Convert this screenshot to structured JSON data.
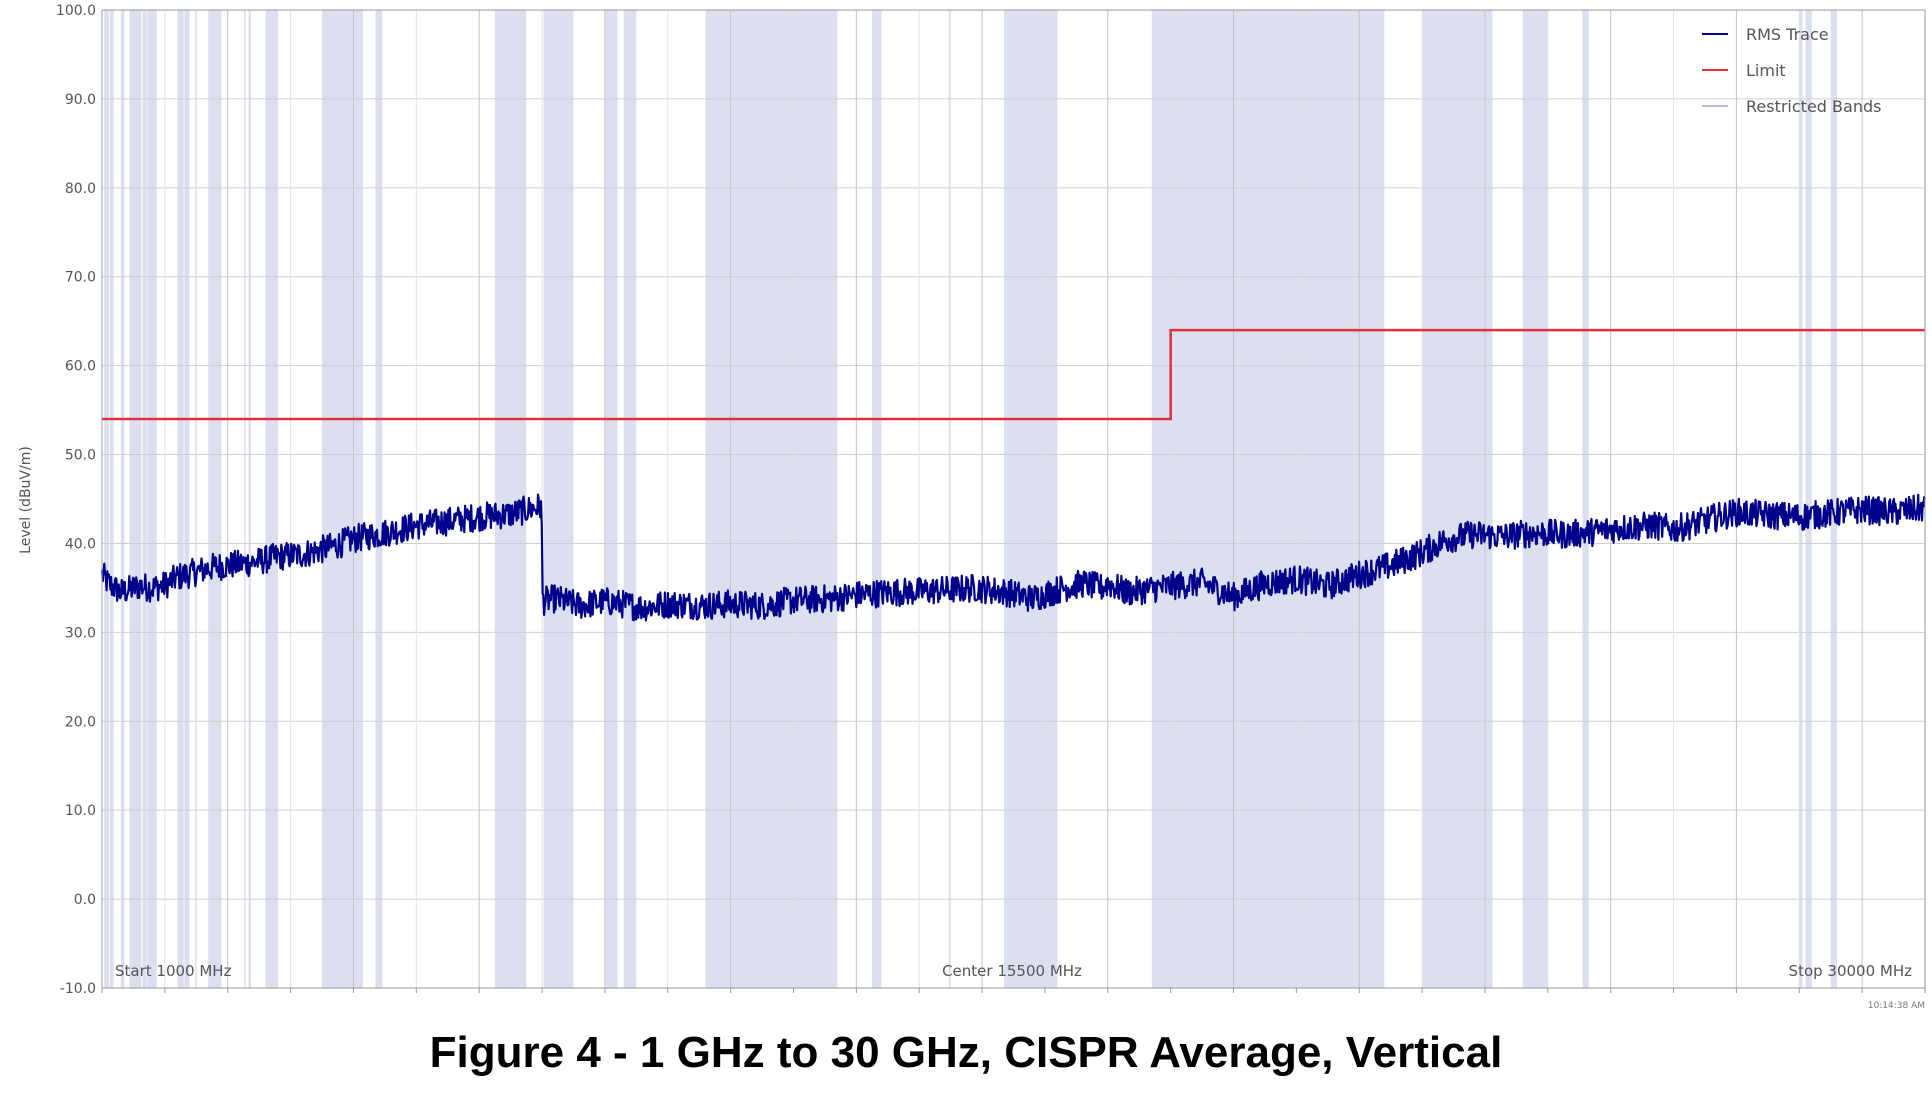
{
  "caption": "Figure 4 - 1 GHz to 30 GHz, CISPR Average, Vertical",
  "chart_data": {
    "type": "line",
    "ylabel": "Level (dBuV/m)",
    "ylim": [
      -10,
      100
    ],
    "y_ticks": [
      "100.0",
      "90.0",
      "80.0",
      "70.0",
      "60.0",
      "50.0",
      "40.0",
      "30.0",
      "20.0",
      "10.0",
      "0.0",
      "-10.0"
    ],
    "xlim_mhz": [
      1000,
      30000
    ],
    "x_scale": "linear",
    "grid": true,
    "legend_position": "top-right",
    "footer": {
      "start": "Start 1000 MHz",
      "center": "Center 15500 MHz",
      "stop": "Stop 30000 MHz"
    },
    "timestamp": "10:14:38 AM",
    "colors": {
      "rms_trace": "#00008b",
      "limit": "#e0303c",
      "restricted_bands": "#dcdff0",
      "grid": "#cfcfcf"
    },
    "restricted_bands_mhz": [
      [
        1035,
        1110
      ],
      [
        1125,
        1185
      ],
      [
        1300,
        1355
      ],
      [
        1435,
        1625
      ],
      [
        1645,
        1650
      ],
      [
        1660,
        1710
      ],
      [
        1720,
        1870
      ],
      [
        2200,
        2300
      ],
      [
        2310,
        2390
      ],
      [
        2483.5,
        2500
      ],
      [
        2690,
        2900
      ],
      [
        3260,
        3267
      ],
      [
        3332,
        3339
      ],
      [
        3345.8,
        3358
      ],
      [
        3600,
        3800
      ],
      [
        4500,
        5150
      ],
      [
        5350,
        5460
      ],
      [
        7250,
        7750
      ],
      [
        8025,
        8500
      ],
      [
        9000,
        9200
      ],
      [
        9300,
        9500
      ],
      [
        10600,
        12700
      ],
      [
        13250,
        13400
      ],
      [
        14470,
        14500
      ],
      [
        15350,
        16200
      ],
      [
        17700,
        21400
      ],
      [
        22010,
        23120
      ],
      [
        23600,
        24000
      ],
      [
        24550,
        24650
      ],
      [
        28000,
        28050
      ],
      [
        28100,
        28200
      ],
      [
        28500,
        28600
      ]
    ],
    "series": [
      {
        "name": "RMS Trace",
        "x_mhz": [
          1000,
          1100,
          1300,
          1600,
          1800,
          2000,
          2200,
          2500,
          2800,
          3100,
          3500,
          3800,
          4200,
          4600,
          5000,
          5500,
          6000,
          6500,
          7000,
          7500,
          7990,
          8010,
          8200,
          8600,
          9000,
          9600,
          10000,
          10600,
          11000,
          11500,
          12000,
          12600,
          13000,
          13500,
          14000,
          14500,
          14900,
          15400,
          15800,
          16200,
          16600,
          16900,
          17000,
          17300,
          17600,
          18000,
          18500,
          19000,
          19500,
          20000,
          20500,
          21000,
          21500,
          22000,
          22400,
          22800,
          23300,
          23800,
          24300,
          24700,
          25200,
          25700,
          26000,
          26400,
          26700,
          27000,
          27500,
          28000,
          28500,
          29000,
          29500,
          30000
        ],
        "y_dbuv": [
          36.5,
          35.5,
          34.5,
          35.2,
          35.0,
          35.3,
          36.2,
          36.8,
          37.4,
          37.6,
          38.0,
          38.5,
          38.8,
          39.5,
          40.5,
          41.2,
          42.0,
          42.5,
          43.0,
          43.3,
          44.2,
          33.5,
          33.8,
          33.0,
          33.5,
          32.8,
          33.2,
          33.0,
          33.2,
          33.0,
          33.6,
          33.8,
          34.2,
          34.5,
          34.6,
          34.8,
          35.0,
          34.5,
          33.8,
          34.8,
          35.5,
          35.0,
          35.5,
          34.5,
          34.8,
          35.2,
          35.6,
          34.0,
          35.5,
          36.0,
          35.2,
          36.5,
          37.5,
          39.0,
          40.5,
          41.0,
          40.8,
          41.2,
          41.0,
          41.3,
          41.8,
          42.0,
          41.6,
          42.3,
          43.0,
          43.5,
          43.2,
          43.0,
          43.4,
          43.8,
          43.5,
          44.0
        ]
      },
      {
        "name": "Limit",
        "x_mhz": [
          1000,
          18000,
          18000,
          30000
        ],
        "y_dbuv": [
          54.0,
          54.0,
          64.0,
          64.0
        ]
      },
      {
        "name": "Restricted Bands"
      }
    ]
  }
}
